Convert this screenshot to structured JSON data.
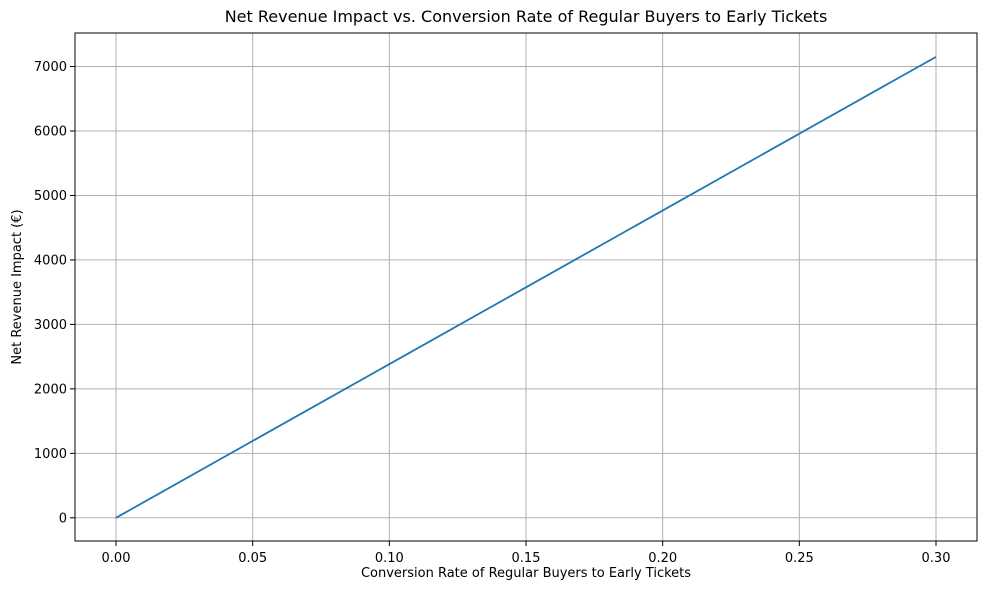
{
  "chart_data": {
    "type": "line",
    "title": "Net Revenue Impact vs. Conversion Rate of Regular Buyers to Early Tickets",
    "xlabel": "Conversion Rate of Regular Buyers to Early Tickets",
    "ylabel": "Net Revenue Impact (€)",
    "xlim": [
      -0.015,
      0.315
    ],
    "ylim": [
      -360,
      7520
    ],
    "xticks": [
      0.0,
      0.05,
      0.1,
      0.15,
      0.2,
      0.25,
      0.3
    ],
    "xtick_labels": [
      "0.00",
      "0.05",
      "0.10",
      "0.15",
      "0.20",
      "0.25",
      "0.30"
    ],
    "yticks": [
      0,
      1000,
      2000,
      3000,
      4000,
      5000,
      6000,
      7000
    ],
    "ytick_labels": [
      "0",
      "1000",
      "2000",
      "3000",
      "4000",
      "5000",
      "6000",
      "7000"
    ],
    "grid": true,
    "series": [
      {
        "color": "#1f77b4",
        "x": [
          0.0,
          0.3
        ],
        "y": [
          0,
          7150
        ]
      }
    ]
  }
}
